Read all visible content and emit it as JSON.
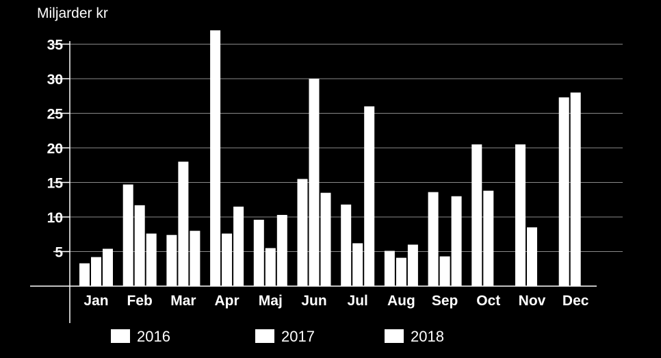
{
  "chart_data": {
    "type": "bar",
    "ylabel": "Miljarder kr",
    "xlabel": "",
    "ylim": [
      0,
      37
    ],
    "yticks": [
      5,
      10,
      15,
      20,
      25,
      30,
      35
    ],
    "grid": true,
    "legend_position": "bottom",
    "categories": [
      "Jan",
      "Feb",
      "Mar",
      "Apr",
      "Maj",
      "Jun",
      "Jul",
      "Aug",
      "Sep",
      "Oct",
      "Nov",
      "Dec"
    ],
    "series": [
      {
        "name": "2016",
        "color": "#ffffff",
        "values": [
          3.3,
          14.7,
          7.4,
          37.0,
          9.6,
          15.5,
          11.8,
          5.1,
          13.6,
          20.5,
          20.5,
          27.3
        ]
      },
      {
        "name": "2017",
        "color": "#ffffff",
        "values": [
          4.2,
          11.7,
          18.0,
          7.6,
          5.5,
          30.0,
          6.2,
          4.1,
          4.3,
          13.8,
          8.5,
          28.0
        ]
      },
      {
        "name": "2018",
        "color": "#ffffff",
        "values": [
          5.4,
          7.6,
          8.0,
          11.5,
          10.3,
          13.5,
          26.0,
          6.0,
          13.0,
          null,
          null,
          null
        ]
      }
    ]
  }
}
